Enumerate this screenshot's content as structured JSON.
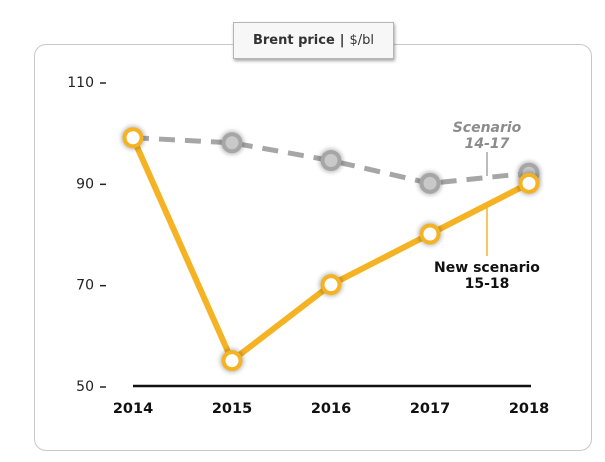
{
  "header": {
    "title": "Brent price",
    "separator": "|",
    "unit": "$/bl"
  },
  "chart_data": {
    "type": "line",
    "title": "Brent price | $/bl",
    "categories": [
      "2014",
      "2015",
      "2016",
      "2017",
      "2018"
    ],
    "ylim": [
      50,
      110
    ],
    "yticks": [
      "110",
      "90",
      "70",
      "50"
    ],
    "ytick_values": [
      110,
      90,
      70,
      50
    ],
    "grid": false,
    "series": [
      {
        "name": "Scenario 14-17",
        "label_lines": [
          "Scenario",
          "14-17"
        ],
        "style": "dashed",
        "color": "#a6a6a6",
        "values": [
          99,
          98,
          94.5,
          90,
          92
        ]
      },
      {
        "name": "New scenario 15-18",
        "label_lines": [
          "New scenario",
          "15-18"
        ],
        "style": "solid",
        "color": "#f5b324",
        "values": [
          99,
          55,
          70,
          80,
          90
        ]
      }
    ]
  }
}
